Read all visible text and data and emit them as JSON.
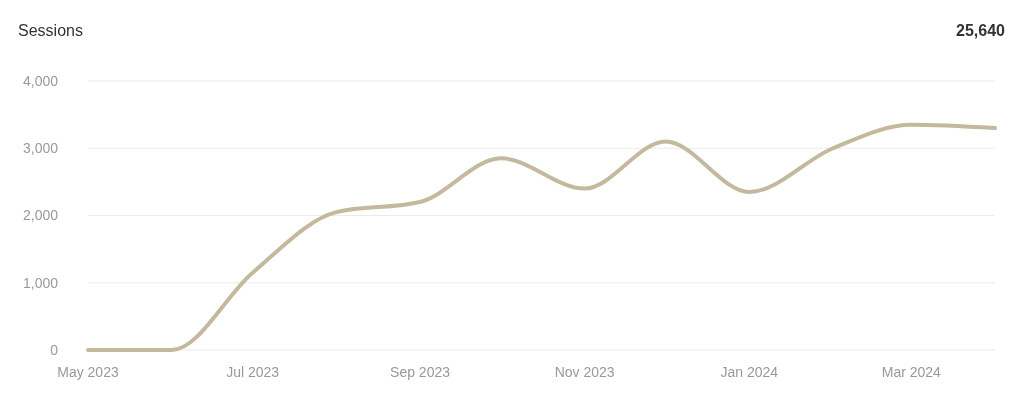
{
  "chart_data": {
    "type": "line",
    "title": "Sessions",
    "annotations": [
      "25,640"
    ],
    "x": [
      "2023-05",
      "2023-06",
      "2023-07",
      "2023-08",
      "2023-09",
      "2023-10",
      "2023-11",
      "2023-12",
      "2024-01",
      "2024-02",
      "2024-03",
      "2024-04"
    ],
    "series": [
      {
        "color": "#c4b99c",
        "values": [
          0,
          0,
          1150,
          2050,
          2200,
          2850,
          2400,
          3100,
          2350,
          3000,
          3350,
          3300
        ]
      }
    ],
    "xlim": [
      "2023-05",
      "2024-04"
    ],
    "xticks": [
      {
        "value": "2023-05",
        "label": "May 2023"
      },
      {
        "value": "2023-07",
        "label": "Jul 2023"
      },
      {
        "value": "2023-09",
        "label": "Sep 2023"
      },
      {
        "value": "2023-11",
        "label": "Nov 2023"
      },
      {
        "value": "2024-01",
        "label": "Jan 2024"
      },
      {
        "value": "2024-03",
        "label": "Mar 2024"
      }
    ],
    "ylim": [
      0,
      4000
    ],
    "yticks": [
      {
        "value": 0,
        "label": "0"
      },
      {
        "value": 1000,
        "label": "1,000"
      },
      {
        "value": 2000,
        "label": "2,000"
      },
      {
        "value": 3000,
        "label": "3,000"
      },
      {
        "value": 4000,
        "label": "4,000"
      }
    ],
    "grid": "y",
    "marker": "none",
    "line_style": "solid"
  }
}
